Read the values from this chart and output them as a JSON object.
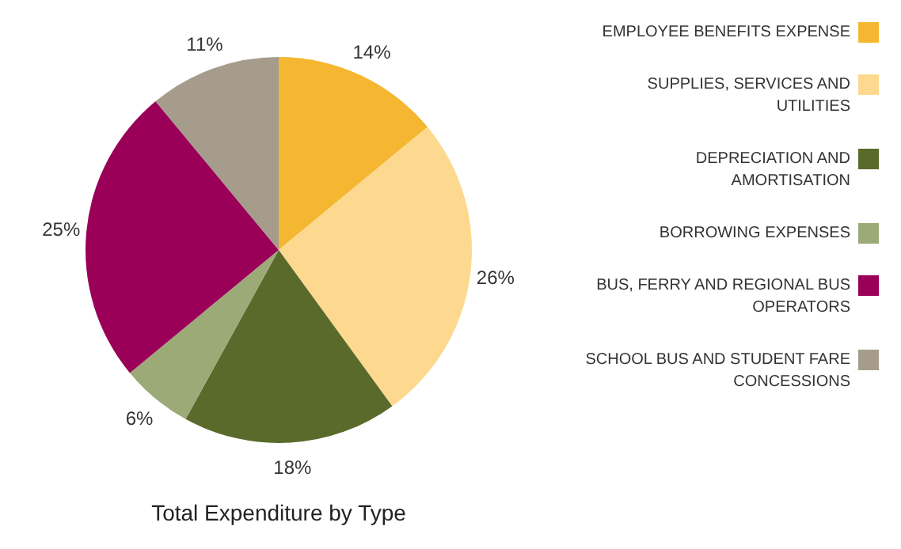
{
  "chart_data": {
    "type": "pie",
    "title": "Total Expenditure by Type",
    "categories": [
      "EMPLOYEE BENEFITS EXPENSE",
      "SUPPLIES, SERVICES AND UTILITIES",
      "DEPRECIATION AND AMORTISATION",
      "BORROWING EXPENSES",
      "BUS, FERRY AND REGIONAL BUS OPERATORS",
      "SCHOOL BUS AND STUDENT FARE CONCESSIONS"
    ],
    "values": [
      14,
      26,
      18,
      6,
      25,
      11
    ],
    "colors": [
      "#f5b731",
      "#fdd98f",
      "#5a6a2b",
      "#9caa78",
      "#9a0058",
      "#a59c8c"
    ],
    "value_labels": [
      "14%",
      "26%",
      "18%",
      "6%",
      "25%",
      "11%"
    ],
    "legend": "right"
  }
}
